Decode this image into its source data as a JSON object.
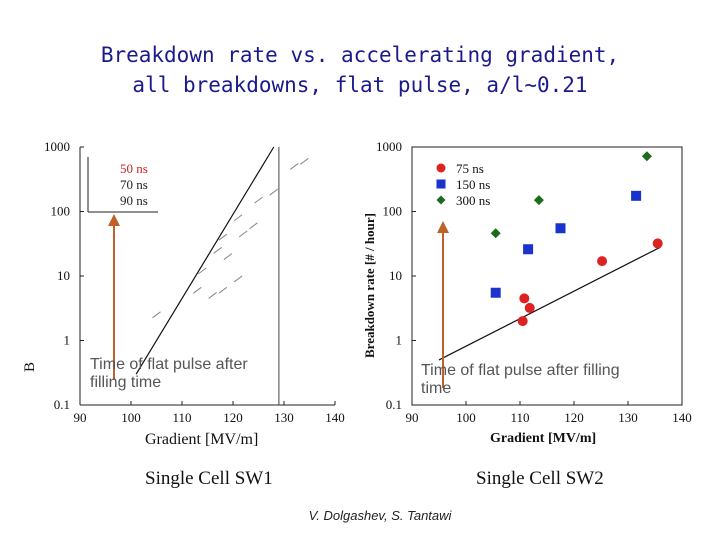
{
  "header": {
    "title_line1": "Breakdown rate vs. accelerating gradient,",
    "title_line2": "all breakdowns, flat pulse, a/l~0.21"
  },
  "chart_data": [
    {
      "type": "scatter",
      "xlabel": "Gradient [MV/m]",
      "ylabel": "B",
      "xlim": [
        90,
        140
      ],
      "ylim": [
        0.1,
        1000
      ],
      "yscale": "log",
      "xticks": [
        "90",
        "100",
        "110",
        "120",
        "130",
        "140"
      ],
      "yticks": [
        "0.1",
        "1",
        "10",
        "100",
        "1000"
      ],
      "legend": [
        "50 ns",
        "70 ns",
        "90 ns"
      ],
      "legend_colors": [
        "#cc2222",
        "#222222",
        "#222222"
      ],
      "legend_placement": "top-left",
      "grid": false,
      "trend_line": {
        "x": [
          101,
          128
        ],
        "y": [
          0.3,
          1000
        ]
      },
      "series": [
        {
          "name": "50 ns",
          "points": [
            [
              105,
              2.5
            ],
            [
              113,
              6
            ],
            [
              116,
              5
            ],
            [
              118,
              6
            ],
            [
              121,
              9
            ]
          ]
        },
        {
          "name": "70 ns",
          "points": [
            [
              114,
              12
            ],
            [
              117,
              25
            ],
            [
              119,
              20
            ],
            [
              122,
              45
            ],
            [
              124,
              60
            ]
          ]
        },
        {
          "name": "90 ns",
          "points": [
            [
              118,
              40
            ],
            [
              121,
              80
            ],
            [
              125,
              150
            ],
            [
              128,
              200
            ],
            [
              132,
              500
            ],
            [
              134,
              600
            ]
          ]
        }
      ],
      "reference_line_x": 129,
      "caption": "Single Cell SW1"
    },
    {
      "type": "scatter",
      "xlabel": "Gradient [MV/m]",
      "ylabel": "Breakdown rate   [# / hour]",
      "xlim": [
        90,
        140
      ],
      "ylim": [
        0.1,
        1000
      ],
      "yscale": "log",
      "xticks": [
        "90",
        "100",
        "110",
        "120",
        "130",
        "140"
      ],
      "yticks": [
        "0.1",
        "1",
        "10",
        "100",
        "1000"
      ],
      "legend_placement": "top-left",
      "grid": false,
      "trend_line": {
        "x": [
          95,
          136
        ],
        "y": [
          0.5,
          28
        ]
      },
      "series": [
        {
          "name": "75 ns",
          "color": "#dd2222",
          "marker": "circle",
          "points": [
            [
              110.5,
              2.0
            ],
            [
              110.8,
              4.5
            ],
            [
              111.8,
              3.2
            ],
            [
              125.2,
              17
            ],
            [
              135.5,
              32
            ]
          ]
        },
        {
          "name": "150 ns",
          "color": "#1a33cc",
          "marker": "square",
          "points": [
            [
              105.5,
              5.5
            ],
            [
              111.5,
              26
            ],
            [
              117.5,
              55
            ],
            [
              131.5,
              175
            ]
          ]
        },
        {
          "name": "300 ns",
          "color": "#1d6b1d",
          "marker": "diamond",
          "points": [
            [
              105.5,
              46
            ],
            [
              113.5,
              150
            ],
            [
              133.5,
              720
            ]
          ]
        }
      ],
      "caption": "Single Cell SW2"
    }
  ],
  "annotations": {
    "left": "Time of flat pulse after filling time",
    "right": "Time of flat pulse after filling time"
  },
  "footer": {
    "author": "V. Dolgashev, S. Tantawi"
  },
  "colors": {
    "title": "#1a1a8c",
    "arrow": "#c0602a",
    "annotation": "#555555"
  }
}
